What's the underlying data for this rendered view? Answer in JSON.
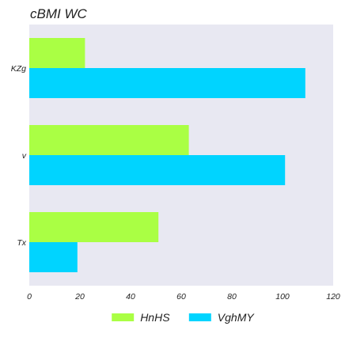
{
  "chart_data": {
    "type": "bar",
    "orientation": "horizontal",
    "title": "cBMI WC",
    "xlabel": "",
    "ylabel": "",
    "categories": [
      "KZg",
      "v",
      "Tx"
    ],
    "series": [
      {
        "name": "HnHS",
        "color": "#aaff44",
        "values": [
          22,
          63,
          51
        ]
      },
      {
        "name": "VghMY",
        "color": "#00d4ff",
        "values": [
          109,
          101,
          19
        ]
      }
    ],
    "xlim": [
      0,
      120
    ],
    "xticks": [
      "0",
      "20",
      "40",
      "60",
      "80",
      "100",
      "120"
    ],
    "grid": false,
    "background": "#e8e8f2",
    "legend_position": "bottom-center"
  }
}
